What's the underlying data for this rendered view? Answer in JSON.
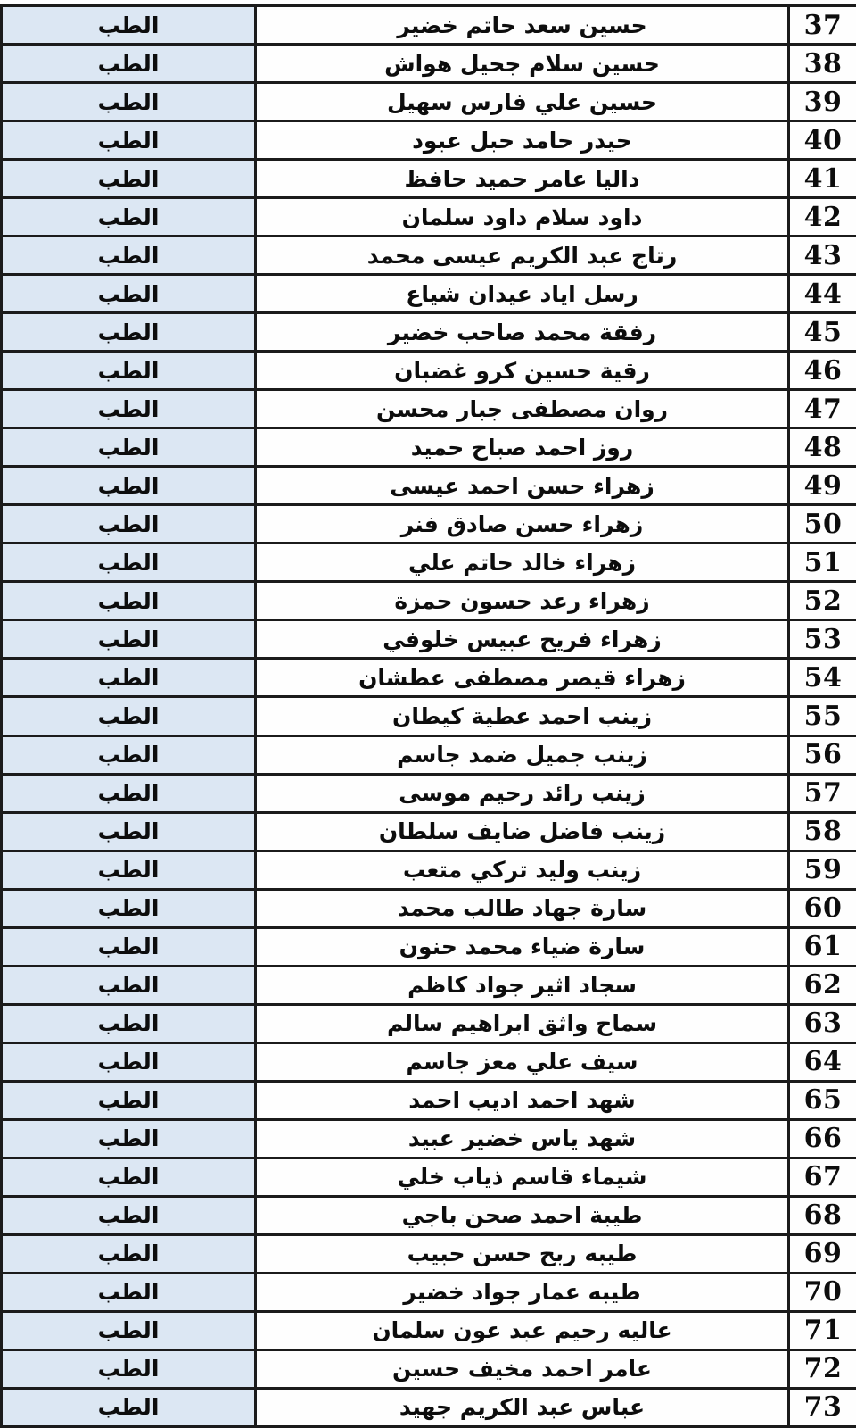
{
  "document": {
    "kind": "scanned admission roster table",
    "language": "ar",
    "visible_row_range": "37-73"
  },
  "colors": {
    "department_bg": "#dce7f3",
    "cell_bg": "#fefefe",
    "border": "#1b1b1b",
    "text": "#0d0d0d"
  },
  "table": {
    "department_label": "الطب",
    "rows": [
      {
        "number": "37",
        "name": "حسين سعد حاتم خضير",
        "department": "الطب"
      },
      {
        "number": "38",
        "name": "حسين سلام جحيل هواش",
        "department": "الطب"
      },
      {
        "number": "39",
        "name": "حسين علي فارس سهيل",
        "department": "الطب"
      },
      {
        "number": "40",
        "name": "حيدر حامد حبل عبود",
        "department": "الطب"
      },
      {
        "number": "41",
        "name": "داليا عامر حميد حافظ",
        "department": "الطب"
      },
      {
        "number": "42",
        "name": "داود سلام داود سلمان",
        "department": "الطب"
      },
      {
        "number": "43",
        "name": "رتاج عبد الكريم عيسى محمد",
        "department": "الطب"
      },
      {
        "number": "44",
        "name": "رسل اياد عيدان شياع",
        "department": "الطب"
      },
      {
        "number": "45",
        "name": "رفقة محمد صاحب خضير",
        "department": "الطب"
      },
      {
        "number": "46",
        "name": "رقية حسين كرو غضبان",
        "department": "الطب"
      },
      {
        "number": "47",
        "name": "روان مصطفى جبار محسن",
        "department": "الطب"
      },
      {
        "number": "48",
        "name": "روز احمد صباح حميد",
        "department": "الطب"
      },
      {
        "number": "49",
        "name": "زهراء حسن احمد عيسى",
        "department": "الطب"
      },
      {
        "number": "50",
        "name": "زهراء حسن صادق فنر",
        "department": "الطب"
      },
      {
        "number": "51",
        "name": "زهراء خالد حاتم علي",
        "department": "الطب"
      },
      {
        "number": "52",
        "name": "زهراء رعد حسون حمزة",
        "department": "الطب"
      },
      {
        "number": "53",
        "name": "زهراء فريح عبيس خلوفي",
        "department": "الطب"
      },
      {
        "number": "54",
        "name": "زهراء قيصر مصطفى عطشان",
        "department": "الطب"
      },
      {
        "number": "55",
        "name": "زينب احمد عطية كيطان",
        "department": "الطب"
      },
      {
        "number": "56",
        "name": "زينب جميل ضمد جاسم",
        "department": "الطب"
      },
      {
        "number": "57",
        "name": "زينب رائد رحيم موسى",
        "department": "الطب"
      },
      {
        "number": "58",
        "name": "زينب فاضل ضايف سلطان",
        "department": "الطب"
      },
      {
        "number": "59",
        "name": "زينب وليد تركي متعب",
        "department": "الطب"
      },
      {
        "number": "60",
        "name": "سارة جهاد طالب محمد",
        "department": "الطب"
      },
      {
        "number": "61",
        "name": "سارة ضياء محمد حنون",
        "department": "الطب"
      },
      {
        "number": "62",
        "name": "سجاد اثير جواد كاظم",
        "department": "الطب"
      },
      {
        "number": "63",
        "name": "سماح واثق ابراهيم سالم",
        "department": "الطب"
      },
      {
        "number": "64",
        "name": "سيف علي معز جاسم",
        "department": "الطب"
      },
      {
        "number": "65",
        "name": "شهد احمد اديب احمد",
        "department": "الطب"
      },
      {
        "number": "66",
        "name": "شهد ياس خضير عبيد",
        "department": "الطب"
      },
      {
        "number": "67",
        "name": "شيماء قاسم ذياب خلي",
        "department": "الطب"
      },
      {
        "number": "68",
        "name": "طيبة احمد صحن باجي",
        "department": "الطب"
      },
      {
        "number": "69",
        "name": "طيبه ربح حسن حبيب",
        "department": "الطب"
      },
      {
        "number": "70",
        "name": "طيبه عمار جواد خضير",
        "department": "الطب"
      },
      {
        "number": "71",
        "name": "عاليه رحيم عبد عون سلمان",
        "department": "الطب"
      },
      {
        "number": "72",
        "name": "عامر احمد مخيف حسين",
        "department": "الطب"
      },
      {
        "number": "73",
        "name": "عباس عبد الكريم جهيد",
        "department": "الطب"
      }
    ]
  }
}
